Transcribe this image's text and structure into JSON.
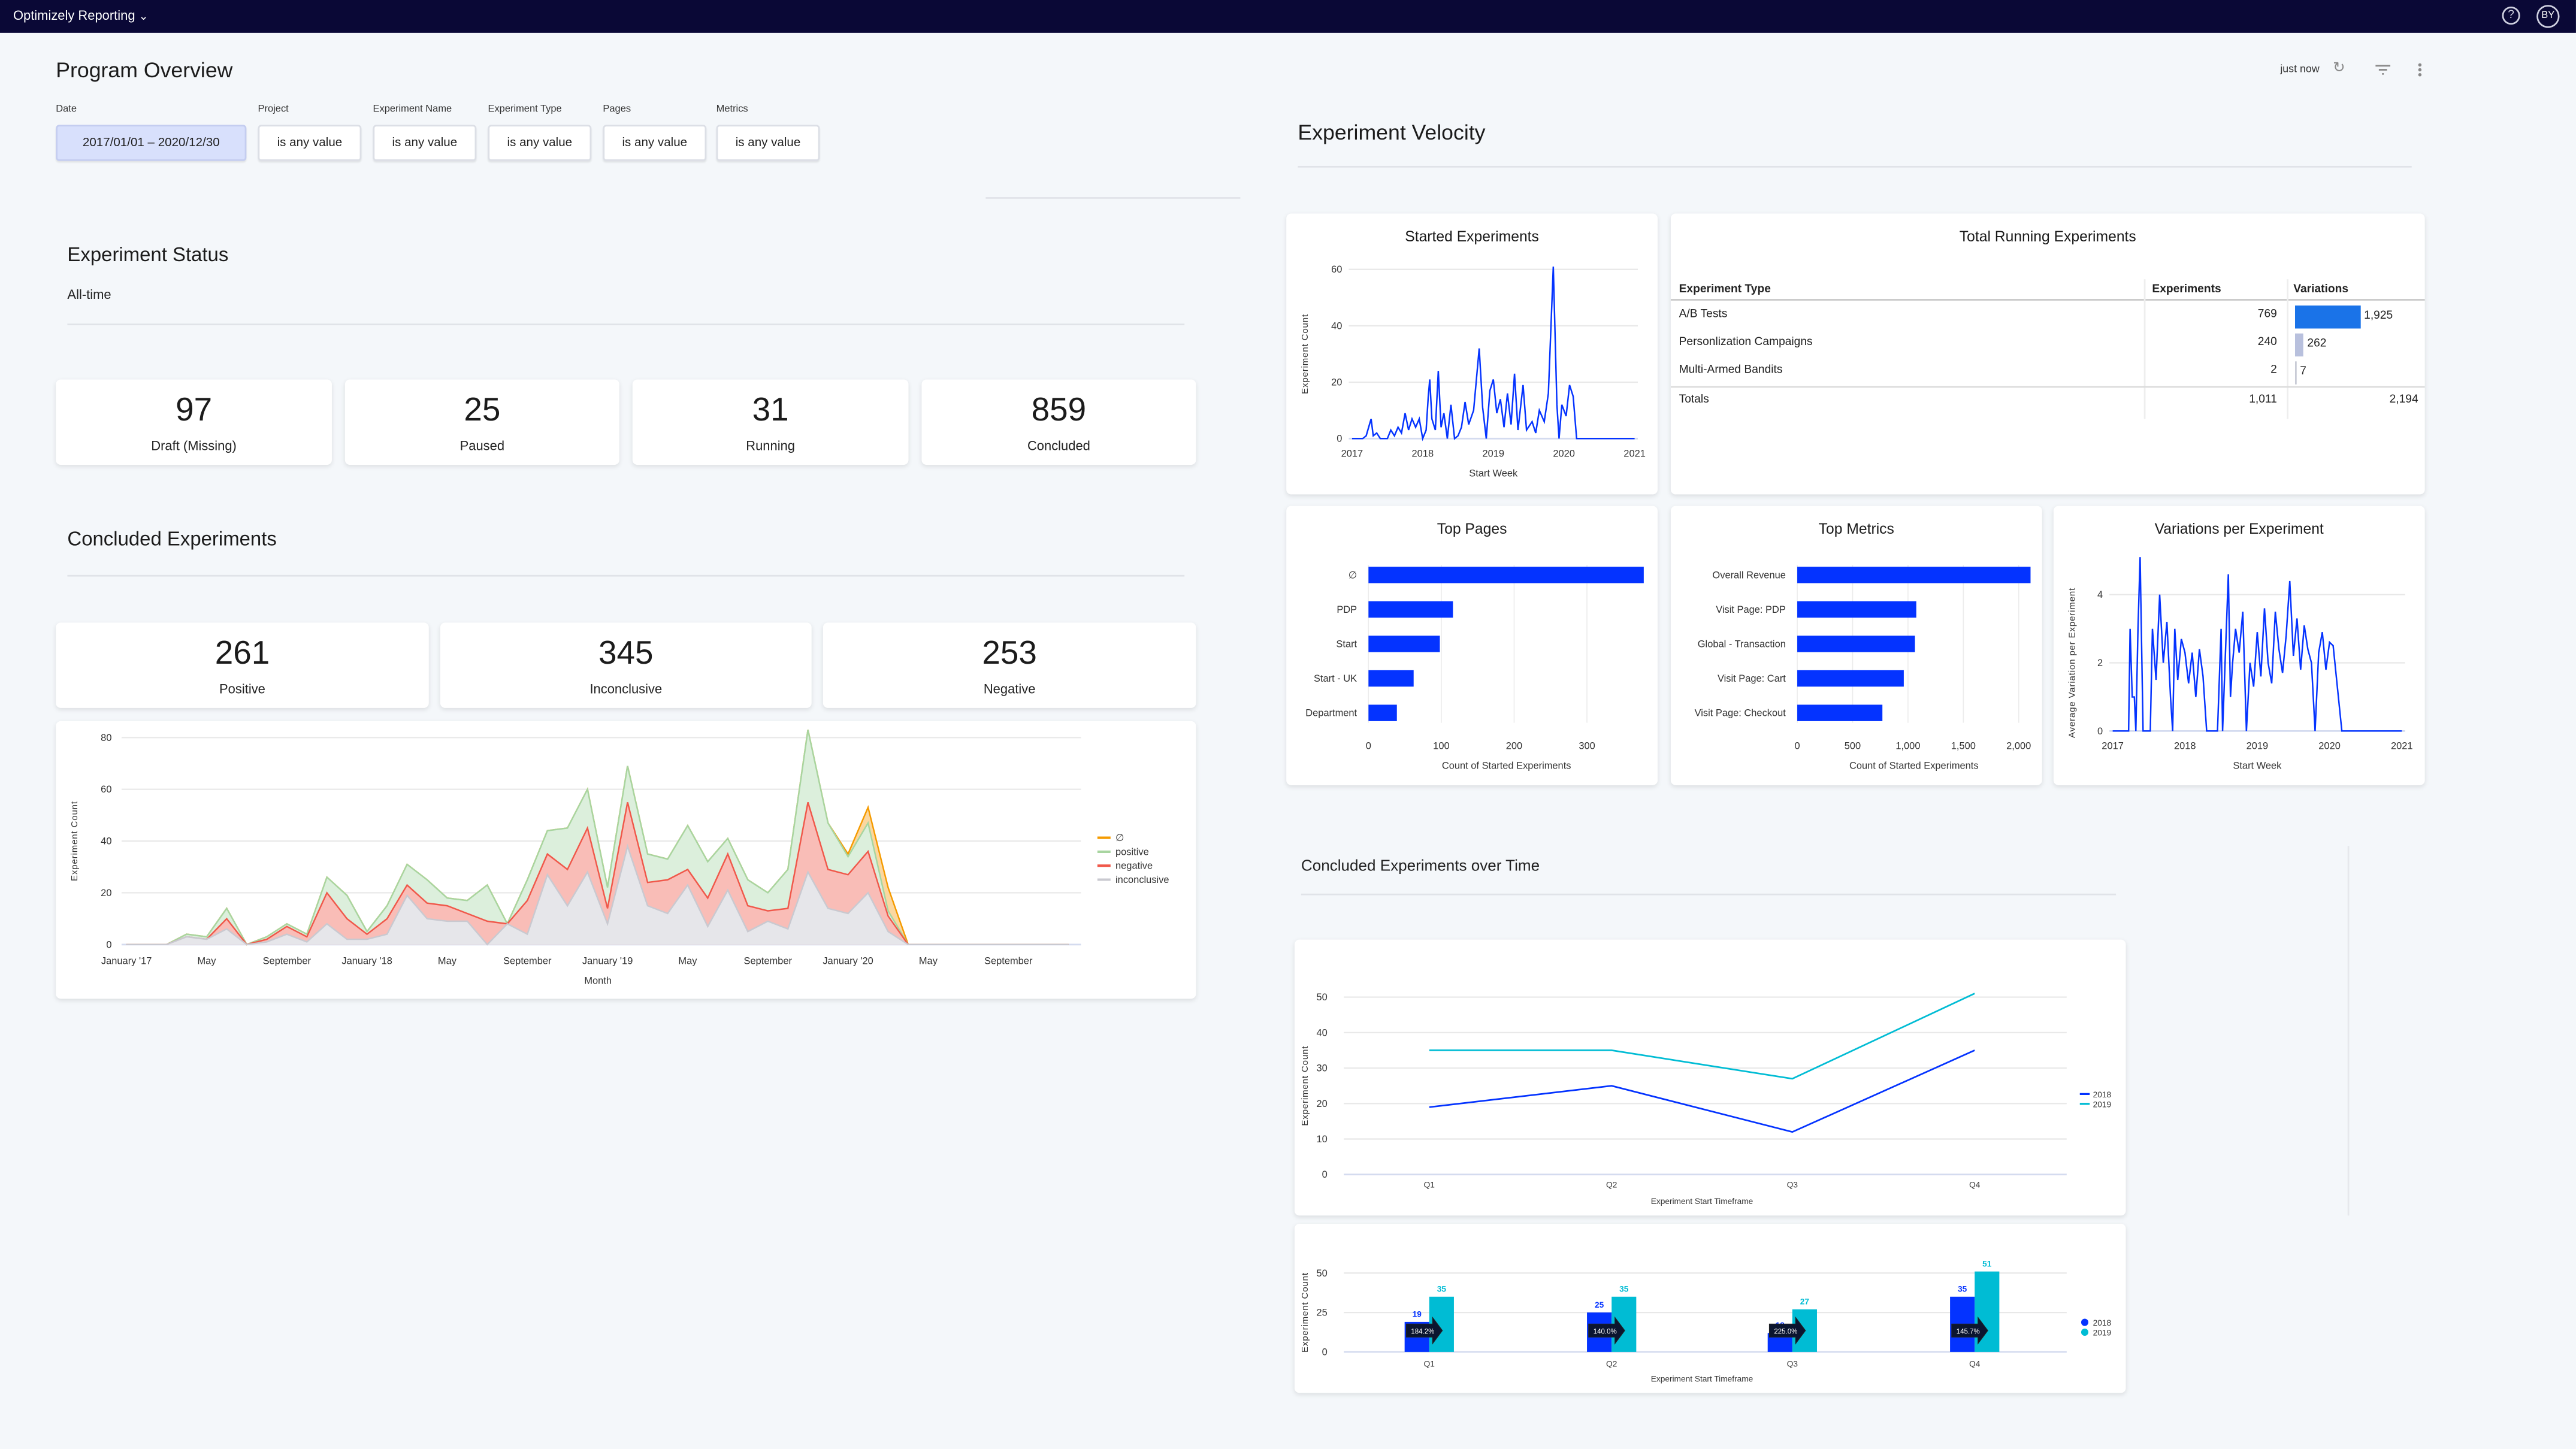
{
  "topbar": {
    "app_name": "Optimizely Reporting",
    "chevron_icon": "chevron-down-icon",
    "help_icon": "help-circle-icon",
    "avatar_initials": "BY"
  },
  "header": {
    "title": "Program Overview",
    "last_updated": "just now",
    "icons": [
      "refresh-icon",
      "filter-icon",
      "more-vertical-icon"
    ]
  },
  "filters": [
    {
      "label": "Date",
      "value": "2017/01/01 – 2020/12/30"
    },
    {
      "label": "Project",
      "value": "is any value"
    },
    {
      "label": "Experiment Name",
      "value": "is any value"
    },
    {
      "label": "Experiment Type",
      "value": "is any value"
    },
    {
      "label": "Pages",
      "value": "is any value"
    },
    {
      "label": "Metrics",
      "value": "is any value"
    }
  ],
  "experiment_status": {
    "title": "Experiment Status",
    "subtitle": "All-time",
    "cards": [
      {
        "value": "97",
        "label": "Draft (Missing)"
      },
      {
        "value": "25",
        "label": "Paused"
      },
      {
        "value": "31",
        "label": "Running"
      },
      {
        "value": "859",
        "label": "Concluded"
      }
    ]
  },
  "concluded": {
    "title": "Concluded Experiments",
    "cards": [
      {
        "value": "261",
        "label": "Positive"
      },
      {
        "value": "345",
        "label": "Inconclusive"
      },
      {
        "value": "253",
        "label": "Negative"
      }
    ]
  },
  "velocity": {
    "title": "Experiment Velocity"
  },
  "total_running": {
    "title": "Total Running Experiments",
    "columns": [
      "Experiment Type",
      "Experiments",
      "Variations"
    ],
    "rows": [
      {
        "type": "A/B Tests",
        "experiments": "769",
        "variations": "1,925",
        "variations_value": 1925
      },
      {
        "type": "Personlization Campaigns",
        "experiments": "240",
        "variations": "262",
        "variations_value": 262
      },
      {
        "type": "Multi-Armed Bandits",
        "experiments": "2",
        "variations": "7",
        "variations_value": 7
      }
    ],
    "totals": {
      "label": "Totals",
      "experiments": "1,011",
      "variations": "2,194"
    },
    "bar_colors": [
      "#1a73e8",
      "#b8c0dd",
      "#c8cbd6"
    ]
  },
  "over_time": {
    "title": "Concluded Experiments over Time"
  },
  "colors": {
    "blue": "#0433ff",
    "cyan": "#00bcd4",
    "positive": "#a8d5a0",
    "negative": "#f0584a",
    "inconclusive": "#c9c9d0",
    "null": "#f59b00",
    "topbar": "#0a0836"
  },
  "chart_data": [
    {
      "id": "concluded_area",
      "type": "area",
      "stacked": true,
      "xlabel": "Month",
      "ylabel": "Experiment Count",
      "ylim": [
        0,
        80
      ],
      "yticks": [
        0,
        20,
        40,
        60,
        80
      ],
      "x": [
        "2017-01",
        "2017-02",
        "2017-03",
        "2017-04",
        "2017-05",
        "2017-06",
        "2017-07",
        "2017-08",
        "2017-09",
        "2017-10",
        "2017-11",
        "2017-12",
        "2018-01",
        "2018-02",
        "2018-03",
        "2018-04",
        "2018-05",
        "2018-06",
        "2018-07",
        "2018-08",
        "2018-09",
        "2018-10",
        "2018-11",
        "2018-12",
        "2019-01",
        "2019-02",
        "2019-03",
        "2019-04",
        "2019-05",
        "2019-06",
        "2019-07",
        "2019-08",
        "2019-09",
        "2019-10",
        "2019-11",
        "2019-12",
        "2020-01",
        "2020-02",
        "2020-03",
        "2020-04",
        "2020-05",
        "2020-06",
        "2020-07",
        "2020-08",
        "2020-09",
        "2020-10",
        "2020-11",
        "2020-12"
      ],
      "xtick_labels": [
        {
          "i": 0,
          "label": "January '17"
        },
        {
          "i": 4,
          "label": "May"
        },
        {
          "i": 8,
          "label": "September"
        },
        {
          "i": 12,
          "label": "January '18"
        },
        {
          "i": 16,
          "label": "May"
        },
        {
          "i": 20,
          "label": "September"
        },
        {
          "i": 24,
          "label": "January '19"
        },
        {
          "i": 28,
          "label": "May"
        },
        {
          "i": 32,
          "label": "September"
        },
        {
          "i": 36,
          "label": "January '20"
        },
        {
          "i": 40,
          "label": "May"
        },
        {
          "i": 44,
          "label": "September"
        }
      ],
      "legend": "right",
      "series": [
        {
          "name": "inconclusive",
          "values": [
            0,
            0,
            0,
            3,
            2,
            6,
            0,
            1,
            4,
            1,
            8,
            2,
            2,
            4,
            19,
            10,
            9,
            9,
            0,
            8,
            4,
            27,
            15,
            28,
            8,
            38,
            15,
            12,
            23,
            7,
            21,
            5,
            9,
            6,
            28,
            14,
            12,
            20,
            5,
            0,
            0,
            0,
            0,
            0,
            0,
            0,
            0,
            0
          ]
        },
        {
          "name": "negative",
          "values": [
            0,
            0,
            0,
            0,
            0,
            4,
            0,
            1,
            3,
            2,
            12,
            8,
            2,
            6,
            4,
            6,
            6,
            3,
            9,
            0,
            13,
            8,
            14,
            17,
            6,
            17,
            9,
            13,
            6,
            11,
            14,
            10,
            4,
            8,
            27,
            15,
            15,
            16,
            6,
            0,
            0,
            0,
            0,
            0,
            0,
            0,
            0,
            0
          ]
        },
        {
          "name": "positive",
          "values": [
            0,
            0,
            0,
            1,
            1,
            4,
            0,
            1,
            1,
            1,
            6,
            9,
            1,
            5,
            8,
            9,
            3,
            5,
            14,
            0,
            8,
            9,
            16,
            15,
            8,
            14,
            11,
            8,
            17,
            14,
            6,
            10,
            7,
            15,
            28,
            18,
            7,
            11,
            2,
            0,
            0,
            0,
            0,
            0,
            0,
            0,
            0,
            0
          ]
        },
        {
          "name": "∅",
          "values": [
            0,
            0,
            0,
            0,
            0,
            0,
            0,
            0,
            0,
            0,
            0,
            0,
            0,
            0,
            0,
            0,
            0,
            0,
            0,
            0,
            0,
            0,
            0,
            0,
            0,
            0,
            0,
            0,
            0,
            0,
            0,
            0,
            0,
            0,
            0,
            0,
            1,
            6,
            9,
            0,
            0,
            0,
            0,
            0,
            0,
            0,
            0,
            0
          ]
        }
      ],
      "legend_order": [
        "∅",
        "positive",
        "negative",
        "inconclusive"
      ]
    },
    {
      "id": "started_experiments",
      "type": "line",
      "title": "Started Experiments",
      "xlabel": "Start Week",
      "ylabel": "Experiment Count",
      "xlim": [
        2017,
        2021
      ],
      "xticks": [
        2017,
        2018,
        2019,
        2020,
        2021
      ],
      "ylim": [
        0,
        60
      ],
      "yticks": [
        0,
        20,
        40,
        60
      ],
      "points": [
        [
          2017.0,
          0
        ],
        [
          2017.15,
          0
        ],
        [
          2017.2,
          1
        ],
        [
          2017.27,
          7
        ],
        [
          2017.3,
          1
        ],
        [
          2017.35,
          2
        ],
        [
          2017.4,
          0
        ],
        [
          2017.5,
          0
        ],
        [
          2017.55,
          3
        ],
        [
          2017.6,
          1
        ],
        [
          2017.65,
          4
        ],
        [
          2017.7,
          2
        ],
        [
          2017.75,
          9
        ],
        [
          2017.8,
          3
        ],
        [
          2017.85,
          7
        ],
        [
          2017.9,
          4
        ],
        [
          2017.95,
          7
        ],
        [
          2018.0,
          0
        ],
        [
          2018.05,
          3
        ],
        [
          2018.08,
          15
        ],
        [
          2018.1,
          21
        ],
        [
          2018.13,
          7
        ],
        [
          2018.18,
          3
        ],
        [
          2018.22,
          24
        ],
        [
          2018.26,
          4
        ],
        [
          2018.3,
          9
        ],
        [
          2018.35,
          0
        ],
        [
          2018.4,
          12
        ],
        [
          2018.45,
          0
        ],
        [
          2018.5,
          1
        ],
        [
          2018.55,
          4
        ],
        [
          2018.6,
          13
        ],
        [
          2018.65,
          5
        ],
        [
          2018.72,
          10
        ],
        [
          2018.8,
          32
        ],
        [
          2018.85,
          11
        ],
        [
          2018.9,
          0
        ],
        [
          2018.95,
          17
        ],
        [
          2019.0,
          21
        ],
        [
          2019.05,
          9
        ],
        [
          2019.1,
          14
        ],
        [
          2019.15,
          4
        ],
        [
          2019.2,
          16
        ],
        [
          2019.25,
          5
        ],
        [
          2019.3,
          23
        ],
        [
          2019.35,
          3
        ],
        [
          2019.42,
          19
        ],
        [
          2019.47,
          3
        ],
        [
          2019.55,
          6
        ],
        [
          2019.6,
          2
        ],
        [
          2019.65,
          10
        ],
        [
          2019.72,
          6
        ],
        [
          2019.78,
          16
        ],
        [
          2019.85,
          61
        ],
        [
          2019.9,
          12
        ],
        [
          2019.93,
          0
        ],
        [
          2019.97,
          12
        ],
        [
          2020.03,
          8
        ],
        [
          2020.08,
          19
        ],
        [
          2020.13,
          15
        ],
        [
          2020.18,
          0
        ],
        [
          2020.3,
          0
        ],
        [
          2021.0,
          0
        ]
      ]
    },
    {
      "id": "top_pages",
      "type": "bar",
      "orientation": "horizontal",
      "title": "Top Pages",
      "xlabel": "Count of Started Experiments",
      "xlim": [
        0,
        380
      ],
      "xticks": [
        0,
        100,
        200,
        300
      ],
      "categories": [
        "∅",
        "PDP",
        "Start",
        "Start - UK",
        "Department"
      ],
      "values": [
        378,
        116,
        98,
        62,
        39
      ]
    },
    {
      "id": "top_metrics",
      "type": "bar",
      "orientation": "horizontal",
      "title": "Top Metrics",
      "xlabel": "Count of Started Experiments",
      "xlim": [
        0,
        2120
      ],
      "xticks": [
        0,
        500,
        1000,
        1500,
        2000
      ],
      "xtick_labels": [
        "0",
        "500",
        "1,000",
        "1,500",
        "2,000"
      ],
      "categories": [
        "Overall Revenue",
        "Visit Page: PDP",
        "Global - Transaction",
        "Visit Page: Cart",
        "Visit Page: Checkout"
      ],
      "values": [
        2110,
        1075,
        1063,
        962,
        769
      ]
    },
    {
      "id": "variations_per_experiment",
      "type": "line",
      "title": "Variations per Experiment",
      "xlabel": "Start Week",
      "ylabel": "Average Variation per Experiment",
      "xlim": [
        2017,
        2021
      ],
      "xticks": [
        2017,
        2018,
        2019,
        2020,
        2021
      ],
      "ylim": [
        0,
        5
      ],
      "yticks": [
        0,
        2,
        4
      ],
      "points": [
        [
          2017.0,
          0
        ],
        [
          2017.22,
          0
        ],
        [
          2017.24,
          3
        ],
        [
          2017.27,
          1
        ],
        [
          2017.3,
          1
        ],
        [
          2017.32,
          0
        ],
        [
          2017.35,
          3
        ],
        [
          2017.38,
          5.1
        ],
        [
          2017.42,
          0
        ],
        [
          2017.52,
          0
        ],
        [
          2017.55,
          3
        ],
        [
          2017.6,
          1.5
        ],
        [
          2017.65,
          4
        ],
        [
          2017.7,
          2
        ],
        [
          2017.75,
          3.2
        ],
        [
          2017.8,
          1
        ],
        [
          2017.83,
          0
        ],
        [
          2017.86,
          3
        ],
        [
          2017.9,
          1.5
        ],
        [
          2017.95,
          2.7
        ],
        [
          2018.0,
          2.3
        ],
        [
          2018.05,
          1.4
        ],
        [
          2018.1,
          2.3
        ],
        [
          2018.15,
          1
        ],
        [
          2018.2,
          2.4
        ],
        [
          2018.25,
          1.6
        ],
        [
          2018.3,
          0
        ],
        [
          2018.38,
          0
        ],
        [
          2018.45,
          0
        ],
        [
          2018.5,
          3
        ],
        [
          2018.52,
          0
        ],
        [
          2018.6,
          4.6
        ],
        [
          2018.63,
          1
        ],
        [
          2018.66,
          2
        ],
        [
          2018.7,
          3
        ],
        [
          2018.75,
          2.3
        ],
        [
          2018.8,
          3.5
        ],
        [
          2018.85,
          0
        ],
        [
          2018.9,
          2
        ],
        [
          2018.95,
          1.3
        ],
        [
          2019.0,
          2.9
        ],
        [
          2019.05,
          1.6
        ],
        [
          2019.1,
          3.6
        ],
        [
          2019.15,
          2
        ],
        [
          2019.2,
          1.4
        ],
        [
          2019.25,
          3.5
        ],
        [
          2019.3,
          2.4
        ],
        [
          2019.35,
          1.7
        ],
        [
          2019.4,
          2.8
        ],
        [
          2019.45,
          4.4
        ],
        [
          2019.5,
          2.2
        ],
        [
          2019.55,
          3.3
        ],
        [
          2019.6,
          1.8
        ],
        [
          2019.65,
          3.1
        ],
        [
          2019.7,
          2.4
        ],
        [
          2019.75,
          2
        ],
        [
          2019.8,
          0
        ],
        [
          2019.85,
          2.3
        ],
        [
          2019.9,
          2.9
        ],
        [
          2019.95,
          1.8
        ],
        [
          2020.0,
          2.6
        ],
        [
          2020.05,
          2.5
        ],
        [
          2020.17,
          0
        ],
        [
          2021.0,
          0
        ]
      ]
    },
    {
      "id": "concluded_over_time_line",
      "type": "line",
      "xlabel": "Experiment Start Timeframe",
      "ylabel": "Experiment Count",
      "categories": [
        "Q1",
        "Q2",
        "Q3",
        "Q4"
      ],
      "ylim": [
        0,
        50
      ],
      "yticks": [
        0,
        10,
        20,
        30,
        40,
        50
      ],
      "legend": "right",
      "series": [
        {
          "name": "2018",
          "values": [
            19,
            25,
            12,
            35
          ]
        },
        {
          "name": "2019",
          "values": [
            35,
            35,
            27,
            51
          ]
        }
      ]
    },
    {
      "id": "concluded_over_time_bar",
      "type": "bar",
      "xlabel": "Experiment Start Timeframe",
      "ylabel": "Experiment Count",
      "categories": [
        "Q1",
        "Q2",
        "Q3",
        "Q4"
      ],
      "ylim": [
        0,
        50
      ],
      "yticks": [
        0,
        25,
        50
      ],
      "legend": "right",
      "series": [
        {
          "name": "2018",
          "values": [
            19,
            25,
            12,
            35
          ]
        },
        {
          "name": "2019",
          "values": [
            35,
            35,
            27,
            51
          ]
        }
      ],
      "change_labels": [
        "184.2%",
        "140.0%",
        "225.0%",
        "145.7%"
      ]
    }
  ]
}
